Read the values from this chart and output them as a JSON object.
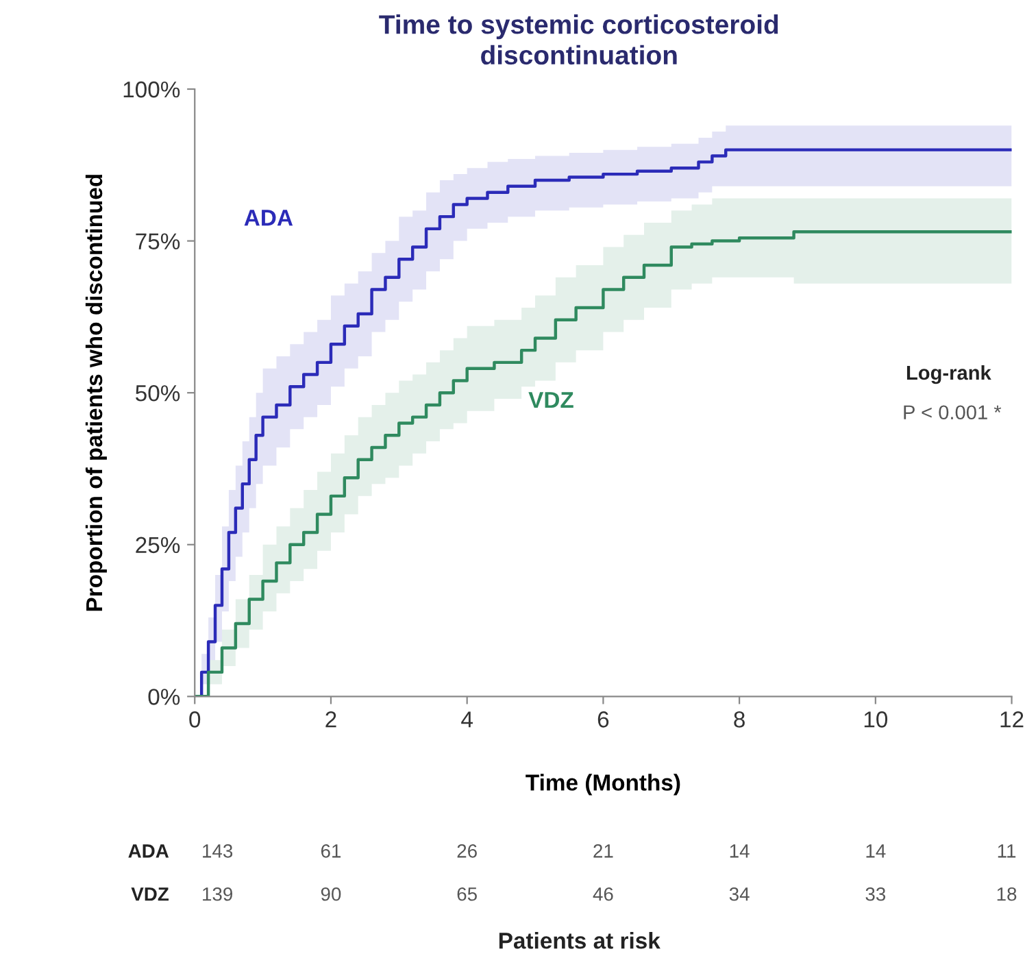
{
  "chart_data": {
    "type": "step",
    "title": "Time to systemic corticosteroid\ndiscontinuation",
    "xlabel": "Time (Months)",
    "ylabel": "Proportion of patients who discontinued",
    "xlim": [
      0,
      12
    ],
    "xticks": [
      0,
      2,
      4,
      6,
      8,
      10,
      12
    ],
    "ylim": [
      0,
      100
    ],
    "yticks": [
      {
        "value": 0,
        "label": "0%"
      },
      {
        "value": 25,
        "label": "25%"
      },
      {
        "value": 50,
        "label": "50%"
      },
      {
        "value": 75,
        "label": "75%"
      },
      {
        "value": 100,
        "label": "100%"
      }
    ],
    "grid": false,
    "legend": false,
    "marker": "none",
    "line_style": "solid",
    "series": [
      {
        "name": "ADA",
        "color": "#2b2bb8",
        "x": [
          0,
          0.1,
          0.2,
          0.3,
          0.4,
          0.5,
          0.6,
          0.7,
          0.8,
          0.9,
          1.0,
          1.2,
          1.4,
          1.6,
          1.8,
          2.0,
          2.2,
          2.4,
          2.6,
          2.8,
          3.0,
          3.2,
          3.4,
          3.6,
          3.8,
          4.0,
          4.3,
          4.6,
          5.0,
          5.5,
          6.0,
          6.5,
          7.0,
          7.4,
          7.6,
          7.8,
          12
        ],
        "values": [
          0,
          4,
          9,
          15,
          21,
          27,
          31,
          35,
          39,
          43,
          46,
          48,
          51,
          53,
          55,
          58,
          61,
          63,
          67,
          69,
          72,
          74,
          77,
          79,
          81,
          82,
          83,
          84,
          85,
          85.5,
          86,
          86.5,
          87,
          88,
          89,
          90,
          90
        ],
        "lower": [
          0,
          2,
          5,
          9,
          14,
          19,
          23,
          27,
          31,
          35,
          38,
          41,
          44,
          46,
          48,
          51,
          54,
          56,
          60,
          62,
          65,
          67,
          70,
          72,
          75,
          77,
          78,
          79,
          80,
          80.5,
          81,
          81.5,
          82,
          83,
          84,
          84,
          84
        ],
        "upper": [
          0,
          7,
          13,
          20,
          28,
          34,
          38,
          42,
          46,
          50,
          54,
          56,
          58,
          60,
          62,
          66,
          68,
          70,
          73,
          75,
          79,
          80,
          83,
          85,
          86,
          87,
          88,
          88.5,
          89,
          89.5,
          90,
          90.5,
          91,
          92,
          93,
          94,
          94
        ]
      },
      {
        "name": "VDZ",
        "color": "#2f8a5f",
        "x": [
          0,
          0.2,
          0.4,
          0.6,
          0.8,
          1.0,
          1.2,
          1.4,
          1.6,
          1.8,
          2.0,
          2.2,
          2.4,
          2.6,
          2.8,
          3.0,
          3.2,
          3.4,
          3.6,
          3.8,
          4.0,
          4.4,
          4.8,
          5.0,
          5.3,
          5.6,
          6.0,
          6.3,
          6.6,
          7.0,
          7.3,
          7.6,
          8.0,
          8.8,
          12
        ],
        "values": [
          0,
          4,
          8,
          12,
          16,
          19,
          22,
          25,
          27,
          30,
          33,
          36,
          39,
          41,
          43,
          45,
          46,
          48,
          50,
          52,
          54,
          55,
          57,
          59,
          62,
          64,
          67,
          69,
          71,
          74,
          74.5,
          75,
          75.5,
          76.5,
          76.5
        ],
        "lower": [
          0,
          2,
          5,
          8,
          11,
          14,
          17,
          19,
          21,
          24,
          27,
          30,
          33,
          35,
          36,
          38,
          40,
          42,
          44,
          45,
          47,
          49,
          51,
          52,
          55,
          57,
          60,
          62,
          64,
          67,
          68,
          69,
          69,
          68,
          68
        ],
        "upper": [
          0,
          6,
          11,
          16,
          20,
          25,
          28,
          31,
          34,
          37,
          40,
          43,
          46,
          48,
          50,
          52,
          53,
          55,
          57,
          59,
          61,
          62,
          64,
          66,
          69,
          71,
          74,
          76,
          78,
          80,
          81,
          82,
          82,
          82,
          82
        ]
      }
    ],
    "annotations": [
      "Log-rank",
      "P < 0.001 *",
      "143",
      "61",
      "26",
      "21",
      "14",
      "14",
      "11",
      "139",
      "90",
      "65",
      "46",
      "34",
      "33",
      "18",
      "Patients at risk"
    ]
  }
}
